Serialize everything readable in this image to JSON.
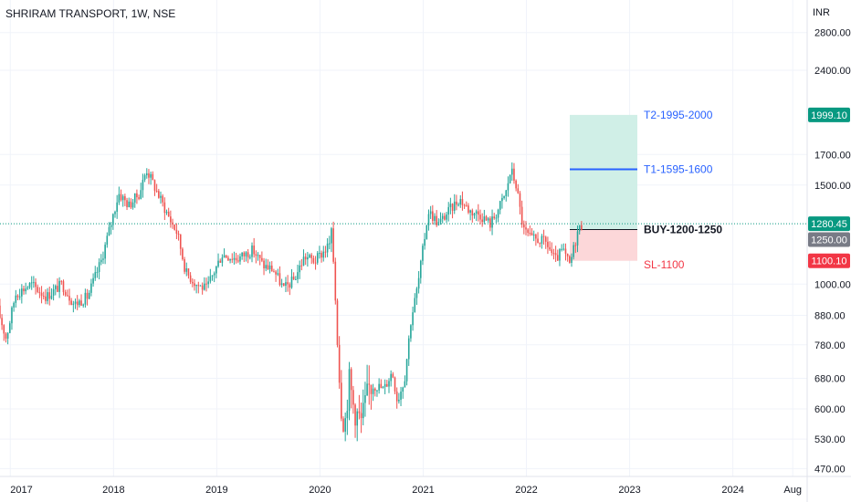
{
  "chart_data": {
    "type": "candlestick",
    "title": "SHRIRAM TRANSPORT, 1W, NSE",
    "currency": "INR",
    "scale": "log",
    "ylim": [
      455,
      3200
    ],
    "y_ticks": [
      "2800.00",
      "2400.00",
      "1700.00",
      "1500.00",
      "1000.00",
      "880.00",
      "780.00",
      "680.00",
      "600.00",
      "530.00",
      "470.00"
    ],
    "y_tick_values": [
      2800,
      2400,
      1700,
      1500,
      1000,
      880,
      780,
      680,
      600,
      530,
      470
    ],
    "x_ticks": [
      "2017",
      "2018",
      "2019",
      "2020",
      "2021",
      "2022",
      "2023",
      "2024",
      "Aug"
    ],
    "x_tick_values": [
      2017.0,
      2018.0,
      2019.0,
      2020.0,
      2021.0,
      2022.0,
      2023.0,
      2024.0,
      2024.58
    ],
    "xlim": [
      2016.9,
      2024.72
    ],
    "colors": {
      "up": "#26a69a",
      "down": "#ef5350",
      "target": "#2962ff",
      "stop": "#f23645",
      "grid": "#f0f3fa",
      "axis_text": "#131722"
    },
    "price_path": [
      [
        2016.88,
        900
      ],
      [
        2016.96,
        800
      ],
      [
        2017.05,
        960
      ],
      [
        2017.2,
        1000
      ],
      [
        2017.35,
        950
      ],
      [
        2017.5,
        1000
      ],
      [
        2017.62,
        920
      ],
      [
        2017.75,
        950
      ],
      [
        2017.88,
        1100
      ],
      [
        2017.95,
        1230
      ],
      [
        2018.05,
        1450
      ],
      [
        2018.15,
        1380
      ],
      [
        2018.25,
        1450
      ],
      [
        2018.32,
        1600
      ],
      [
        2018.45,
        1420
      ],
      [
        2018.55,
        1300
      ],
      [
        2018.62,
        1230
      ],
      [
        2018.7,
        1050
      ],
      [
        2018.8,
        1000
      ],
      [
        2018.9,
        980
      ],
      [
        2019.05,
        1130
      ],
      [
        2019.2,
        1110
      ],
      [
        2019.35,
        1150
      ],
      [
        2019.45,
        1080
      ],
      [
        2019.55,
        1060
      ],
      [
        2019.65,
        980
      ],
      [
        2019.75,
        1020
      ],
      [
        2019.85,
        1120
      ],
      [
        2019.95,
        1100
      ],
      [
        2020.05,
        1150
      ],
      [
        2020.12,
        1200
      ],
      [
        2020.16,
        880
      ],
      [
        2020.2,
        620
      ],
      [
        2020.24,
        560
      ],
      [
        2020.28,
        680
      ],
      [
        2020.33,
        600
      ],
      [
        2020.4,
        570
      ],
      [
        2020.48,
        660
      ],
      [
        2020.55,
        660
      ],
      [
        2020.62,
        650
      ],
      [
        2020.7,
        700
      ],
      [
        2020.75,
        620
      ],
      [
        2020.82,
        680
      ],
      [
        2020.88,
        860
      ],
      [
        2020.95,
        1000
      ],
      [
        2021.05,
        1350
      ],
      [
        2021.15,
        1280
      ],
      [
        2021.25,
        1350
      ],
      [
        2021.35,
        1420
      ],
      [
        2021.45,
        1350
      ],
      [
        2021.55,
        1330
      ],
      [
        2021.65,
        1280
      ],
      [
        2021.72,
        1350
      ],
      [
        2021.8,
        1450
      ],
      [
        2021.85,
        1600
      ],
      [
        2021.9,
        1500
      ],
      [
        2021.97,
        1250
      ],
      [
        2022.05,
        1200
      ],
      [
        2022.12,
        1200
      ],
      [
        2022.2,
        1180
      ],
      [
        2022.28,
        1100
      ],
      [
        2022.35,
        1150
      ],
      [
        2022.42,
        1080
      ],
      [
        2022.5,
        1250
      ],
      [
        2022.55,
        1280
      ]
    ],
    "last_price": 1280.45,
    "position": {
      "entry_label": "BUY-1200-1250",
      "entry_value": 1250,
      "t1_label": "T1-1595-1600",
      "t1_value": 1600,
      "t2_label": "T2-1995-2000",
      "t2_value": 1999.1,
      "sl_label": "SL-1100",
      "sl_value": 1100.1
    },
    "price_tags": [
      {
        "text": "1999.10",
        "value": 1999.1,
        "color": "#089981"
      },
      {
        "text": "1280.45",
        "value": 1280.45,
        "color": "#089981"
      },
      {
        "text": "1250.00",
        "value": 1250,
        "color": "#787b86"
      },
      {
        "text": "1100.10",
        "value": 1100.1,
        "color": "#f23645"
      }
    ]
  }
}
